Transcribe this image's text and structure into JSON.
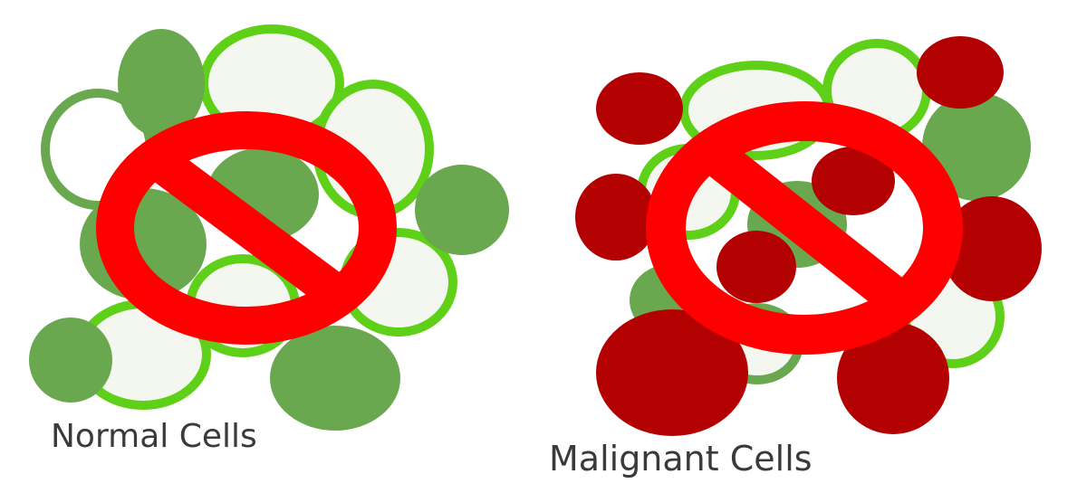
{
  "panels": {
    "normal": {
      "label": "Normal Cells"
    },
    "malignant": {
      "label": "Malignant Cells"
    }
  },
  "colors": {
    "background": "#ffffff",
    "normal_cell_fill": "#6aa84f",
    "normal_cell_outline": "#5fd018",
    "empty_cell_fill": "#f3f7f0",
    "malignant_cell_fill": "#b30000",
    "prohibition_sign": "#ff0000",
    "caption_text": "#3a3a3a"
  },
  "icons": {
    "prohibition": "no-symbol-icon"
  }
}
